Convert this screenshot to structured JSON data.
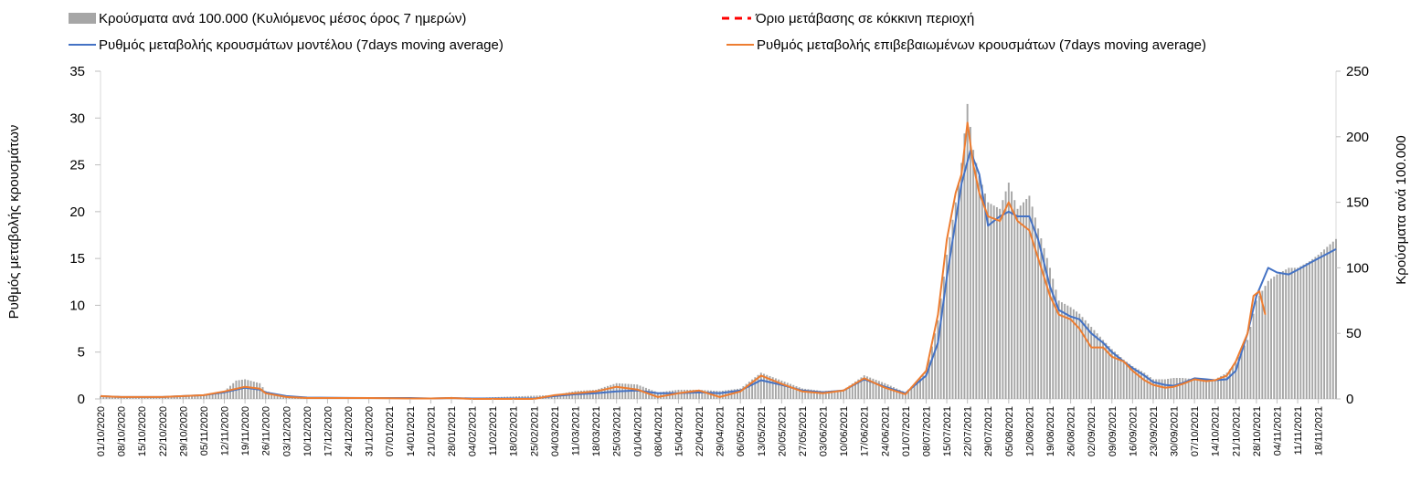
{
  "chart_data": {
    "type": "line",
    "title": "",
    "ylabel_left": "Ρυθμός μεταβολής κρουσμάτων",
    "ylabel_right": "Κρούσματα ανά 100.000",
    "ylim_left": [
      0,
      35
    ],
    "yticks_left": [
      "0",
      "5",
      "10",
      "15",
      "20",
      "25",
      "30",
      "35"
    ],
    "ylim_right": [
      0,
      250
    ],
    "yticks_right": [
      "0",
      "50",
      "100",
      "150",
      "200",
      "250"
    ],
    "x_start": "01/10/2020",
    "x_end": "24/11/2021",
    "x_tick_labels": [
      "01/10/2020",
      "08/10/2020",
      "15/10/2020",
      "22/10/2020",
      "29/10/2020",
      "05/11/2020",
      "12/11/2020",
      "19/11/2020",
      "26/11/2020",
      "03/12/2020",
      "10/12/2020",
      "17/12/2020",
      "24/12/2020",
      "31/12/2020",
      "07/01/2021",
      "14/01/2021",
      "21/01/2021",
      "28/01/2021",
      "04/02/2021",
      "11/02/2021",
      "18/02/2021",
      "25/02/2021",
      "04/03/2021",
      "11/03/2021",
      "18/03/2021",
      "25/03/2021",
      "01/04/2021",
      "08/04/2021",
      "15/04/2021",
      "22/04/2021",
      "29/04/2021",
      "06/05/2021",
      "13/05/2021",
      "20/05/2021",
      "27/05/2021",
      "03/06/2021",
      "10/06/2021",
      "17/06/2021",
      "24/06/2021",
      "01/07/2021",
      "08/07/2021",
      "15/07/2021",
      "22/07/2021",
      "29/07/2021",
      "05/08/2021",
      "12/08/2021",
      "19/08/2021",
      "26/08/2021",
      "02/09/2021",
      "09/09/2021",
      "16/09/2021",
      "23/09/2021",
      "30/09/2021",
      "07/10/2021",
      "14/10/2021",
      "21/10/2021",
      "28/10/2021",
      "04/11/2021",
      "11/11/2021",
      "18/11/2021"
    ],
    "legend_position": "top",
    "series": [
      {
        "name": "Κρούσματα ανά 100.000 (Κυλιόμενος μέσος όρος 7 ημερών)",
        "type": "bar",
        "axis": "right",
        "color": "#a6a6a6",
        "points": [
          [
            "01/10/2020",
            2
          ],
          [
            "08/10/2020",
            1.5
          ],
          [
            "22/10/2020",
            1.5
          ],
          [
            "29/10/2020",
            2.5
          ],
          [
            "05/11/2020",
            3
          ],
          [
            "12/11/2020",
            6
          ],
          [
            "16/11/2020",
            14
          ],
          [
            "19/11/2020",
            15
          ],
          [
            "24/11/2020",
            12
          ],
          [
            "26/11/2020",
            6
          ],
          [
            "03/12/2020",
            2
          ],
          [
            "10/12/2020",
            1
          ],
          [
            "31/12/2020",
            1
          ],
          [
            "21/01/2021",
            0.5
          ],
          [
            "28/01/2021",
            1.5
          ],
          [
            "01/02/2021",
            0.5
          ],
          [
            "04/03/2021",
            3
          ],
          [
            "11/03/2021",
            6
          ],
          [
            "18/03/2021",
            7
          ],
          [
            "25/03/2021",
            12
          ],
          [
            "01/04/2021",
            11
          ],
          [
            "08/04/2021",
            5
          ],
          [
            "15/04/2021",
            7
          ],
          [
            "22/04/2021",
            7
          ],
          [
            "29/04/2021",
            6
          ],
          [
            "06/05/2021",
            8
          ],
          [
            "13/05/2021",
            20
          ],
          [
            "20/05/2021",
            14
          ],
          [
            "27/05/2021",
            8
          ],
          [
            "03/06/2021",
            6
          ],
          [
            "10/06/2021",
            7
          ],
          [
            "17/06/2021",
            18
          ],
          [
            "24/06/2021",
            12
          ],
          [
            "01/07/2021",
            5
          ],
          [
            "08/07/2021",
            20
          ],
          [
            "12/07/2021",
            60
          ],
          [
            "15/07/2021",
            110
          ],
          [
            "18/07/2021",
            150
          ],
          [
            "20/07/2021",
            180
          ],
          [
            "22/07/2021",
            225
          ],
          [
            "24/07/2021",
            190
          ],
          [
            "26/07/2021",
            170
          ],
          [
            "29/07/2021",
            150
          ],
          [
            "02/08/2021",
            145
          ],
          [
            "05/08/2021",
            165
          ],
          [
            "08/08/2021",
            145
          ],
          [
            "12/08/2021",
            155
          ],
          [
            "15/08/2021",
            130
          ],
          [
            "19/08/2021",
            100
          ],
          [
            "22/08/2021",
            75
          ],
          [
            "26/08/2021",
            70
          ],
          [
            "29/08/2021",
            65
          ],
          [
            "02/09/2021",
            55
          ],
          [
            "06/09/2021",
            45
          ],
          [
            "09/09/2021",
            38
          ],
          [
            "13/09/2021",
            30
          ],
          [
            "16/09/2021",
            25
          ],
          [
            "20/09/2021",
            20
          ],
          [
            "23/09/2021",
            15
          ],
          [
            "27/09/2021",
            15
          ],
          [
            "30/09/2021",
            16
          ],
          [
            "03/10/2021",
            16
          ],
          [
            "07/10/2021",
            15
          ],
          [
            "11/10/2021",
            15
          ],
          [
            "14/10/2021",
            15
          ],
          [
            "18/10/2021",
            20
          ],
          [
            "21/10/2021",
            28
          ],
          [
            "25/10/2021",
            45
          ],
          [
            "28/10/2021",
            75
          ],
          [
            "01/11/2021",
            90
          ],
          [
            "04/11/2021",
            95
          ],
          [
            "08/11/2021",
            100
          ],
          [
            "11/11/2021",
            100
          ],
          [
            "15/11/2021",
            105
          ],
          [
            "18/11/2021",
            110
          ],
          [
            "24/11/2021",
            122
          ]
        ]
      },
      {
        "name": "Όριο μετάβασης σε κόκκινη περιοχή",
        "type": "line",
        "axis": "left",
        "color": "#ff0000",
        "dash": true,
        "points": []
      },
      {
        "name": "Ρυθμός μεταβολής κρουσμάτων μοντέλου (7days moving average)",
        "type": "line",
        "axis": "left",
        "color": "#4472c4",
        "points": [
          [
            "01/10/2020",
            0.3
          ],
          [
            "08/10/2020",
            0.2
          ],
          [
            "22/10/2020",
            0.2
          ],
          [
            "29/10/2020",
            0.3
          ],
          [
            "05/11/2020",
            0.4
          ],
          [
            "12/11/2020",
            0.7
          ],
          [
            "19/11/2020",
            1.2
          ],
          [
            "24/11/2020",
            1.0
          ],
          [
            "26/11/2020",
            0.7
          ],
          [
            "03/12/2020",
            0.3
          ],
          [
            "10/12/2020",
            0.15
          ],
          [
            "31/12/2020",
            0.1
          ],
          [
            "14/01/2021",
            0.1
          ],
          [
            "21/01/2021",
            0.05
          ],
          [
            "28/01/2021",
            0.1
          ],
          [
            "04/02/2021",
            0.05
          ],
          [
            "25/02/2021",
            0.05
          ],
          [
            "04/03/2021",
            0.3
          ],
          [
            "11/03/2021",
            0.5
          ],
          [
            "18/03/2021",
            0.6
          ],
          [
            "25/03/2021",
            0.8
          ],
          [
            "01/04/2021",
            0.9
          ],
          [
            "08/04/2021",
            0.6
          ],
          [
            "15/04/2021",
            0.6
          ],
          [
            "22/04/2021",
            0.7
          ],
          [
            "29/04/2021",
            0.6
          ],
          [
            "06/05/2021",
            0.9
          ],
          [
            "13/05/2021",
            2.0
          ],
          [
            "20/05/2021",
            1.5
          ],
          [
            "27/05/2021",
            0.9
          ],
          [
            "03/06/2021",
            0.7
          ],
          [
            "10/06/2021",
            0.9
          ],
          [
            "17/06/2021",
            2.1
          ],
          [
            "24/06/2021",
            1.3
          ],
          [
            "01/07/2021",
            0.6
          ],
          [
            "08/07/2021",
            2.5
          ],
          [
            "12/07/2021",
            6
          ],
          [
            "15/07/2021",
            13
          ],
          [
            "18/07/2021",
            19
          ],
          [
            "20/07/2021",
            23
          ],
          [
            "23/07/2021",
            26.5
          ],
          [
            "26/07/2021",
            24
          ],
          [
            "29/07/2021",
            18.5
          ],
          [
            "02/08/2021",
            19.5
          ],
          [
            "05/08/2021",
            20
          ],
          [
            "08/08/2021",
            19.5
          ],
          [
            "12/08/2021",
            19.5
          ],
          [
            "15/08/2021",
            17
          ],
          [
            "19/08/2021",
            12
          ],
          [
            "22/08/2021",
            9.5
          ],
          [
            "26/08/2021",
            8.8
          ],
          [
            "29/08/2021",
            8.5
          ],
          [
            "02/09/2021",
            7
          ],
          [
            "06/09/2021",
            6
          ],
          [
            "09/09/2021",
            5
          ],
          [
            "13/09/2021",
            4
          ],
          [
            "16/09/2021",
            3.3
          ],
          [
            "20/09/2021",
            2.5
          ],
          [
            "23/09/2021",
            1.8
          ],
          [
            "27/09/2021",
            1.5
          ],
          [
            "30/09/2021",
            1.4
          ],
          [
            "03/10/2021",
            1.7
          ],
          [
            "07/10/2021",
            2.2
          ],
          [
            "11/10/2021",
            2.1
          ],
          [
            "14/10/2021",
            2.0
          ],
          [
            "18/10/2021",
            2.1
          ],
          [
            "21/10/2021",
            3
          ],
          [
            "25/10/2021",
            7
          ],
          [
            "28/10/2021",
            11
          ],
          [
            "01/11/2021",
            14
          ],
          [
            "04/11/2021",
            13.5
          ],
          [
            "08/11/2021",
            13.3
          ],
          [
            "11/11/2021",
            13.8
          ],
          [
            "15/11/2021",
            14.5
          ],
          [
            "18/11/2021",
            15
          ],
          [
            "24/11/2021",
            16
          ]
        ]
      },
      {
        "name": "Ρυθμός μεταβολής επιβεβαιωμένων κρουσμάτων (7days moving average)",
        "type": "line",
        "axis": "left",
        "color": "#ed7d31",
        "points": [
          [
            "01/10/2020",
            0.3
          ],
          [
            "08/10/2020",
            0.2
          ],
          [
            "22/10/2020",
            0.2
          ],
          [
            "29/10/2020",
            0.3
          ],
          [
            "05/11/2020",
            0.4
          ],
          [
            "12/11/2020",
            0.8
          ],
          [
            "19/11/2020",
            1.3
          ],
          [
            "24/11/2020",
            1.1
          ],
          [
            "26/11/2020",
            0.6
          ],
          [
            "03/12/2020",
            0.2
          ],
          [
            "10/12/2020",
            0.1
          ],
          [
            "31/12/2020",
            0.1
          ],
          [
            "14/01/2021",
            0.05
          ],
          [
            "21/01/2021",
            0.05
          ],
          [
            "28/01/2021",
            0.1
          ],
          [
            "04/02/2021",
            0.0
          ],
          [
            "25/02/2021",
            0.0
          ],
          [
            "04/03/2021",
            0.4
          ],
          [
            "11/03/2021",
            0.6
          ],
          [
            "18/03/2021",
            0.8
          ],
          [
            "25/03/2021",
            1.3
          ],
          [
            "01/04/2021",
            1.0
          ],
          [
            "08/04/2021",
            0.2
          ],
          [
            "15/04/2021",
            0.6
          ],
          [
            "22/04/2021",
            0.9
          ],
          [
            "29/04/2021",
            0.2
          ],
          [
            "06/05/2021",
            0.8
          ],
          [
            "13/05/2021",
            2.5
          ],
          [
            "20/05/2021",
            1.6
          ],
          [
            "27/05/2021",
            0.8
          ],
          [
            "03/06/2021",
            0.6
          ],
          [
            "10/06/2021",
            0.9
          ],
          [
            "17/06/2021",
            2.2
          ],
          [
            "24/06/2021",
            1.2
          ],
          [
            "01/07/2021",
            0.5
          ],
          [
            "08/07/2021",
            3
          ],
          [
            "12/07/2021",
            9
          ],
          [
            "15/07/2021",
            17
          ],
          [
            "18/07/2021",
            22
          ],
          [
            "20/07/2021",
            24
          ],
          [
            "22/07/2021",
            29.5
          ],
          [
            "24/07/2021",
            25
          ],
          [
            "26/07/2021",
            22
          ],
          [
            "29/07/2021",
            19.5
          ],
          [
            "02/08/2021",
            19
          ],
          [
            "05/08/2021",
            21
          ],
          [
            "08/08/2021",
            19
          ],
          [
            "12/08/2021",
            18
          ],
          [
            "15/08/2021",
            15
          ],
          [
            "19/08/2021",
            11
          ],
          [
            "22/08/2021",
            9
          ],
          [
            "26/08/2021",
            8.5
          ],
          [
            "29/08/2021",
            7.5
          ],
          [
            "02/09/2021",
            5.5
          ],
          [
            "06/09/2021",
            5.5
          ],
          [
            "09/09/2021",
            4.5
          ],
          [
            "13/09/2021",
            4
          ],
          [
            "16/09/2021",
            3
          ],
          [
            "20/09/2021",
            2
          ],
          [
            "23/09/2021",
            1.5
          ],
          [
            "27/09/2021",
            1.2
          ],
          [
            "30/09/2021",
            1.3
          ],
          [
            "03/10/2021",
            1.6
          ],
          [
            "07/10/2021",
            2.1
          ],
          [
            "11/10/2021",
            1.9
          ],
          [
            "14/10/2021",
            2.0
          ],
          [
            "18/10/2021",
            2.5
          ],
          [
            "21/10/2021",
            4
          ],
          [
            "25/10/2021",
            7
          ],
          [
            "27/10/2021",
            11
          ],
          [
            "29/10/2021",
            11.5
          ],
          [
            "31/10/2021",
            9
          ]
        ]
      }
    ]
  }
}
